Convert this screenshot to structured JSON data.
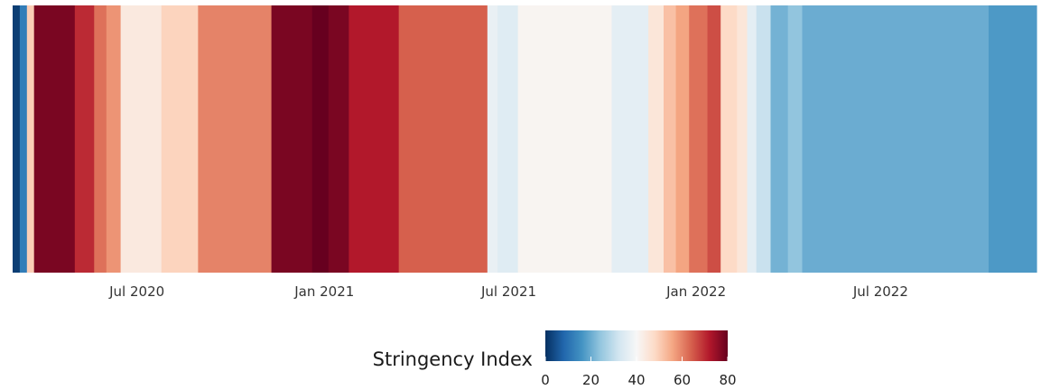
{
  "chart_data": {
    "type": "heatmap",
    "title": "",
    "xlabel": "",
    "ylabel": "",
    "x_range": [
      "2020-03-01",
      "2022-12-01"
    ],
    "x_ticks": [
      {
        "date": "2020-07-01",
        "label": "Jul 2020"
      },
      {
        "date": "2021-01-01",
        "label": "Jan 2021"
      },
      {
        "date": "2021-07-01",
        "label": "Jul 2021"
      },
      {
        "date": "2022-01-01",
        "label": "Jan 2022"
      },
      {
        "date": "2022-07-01",
        "label": "Jul 2022"
      }
    ],
    "grid": false,
    "colorbar": {
      "label": "Stringency Index",
      "range": [
        0,
        80
      ],
      "ticks": [
        0,
        20,
        40,
        60,
        80
      ],
      "placement": "bottom-center",
      "colormap": [
        "#053061",
        "#2166ac",
        "#4393c3",
        "#92c5de",
        "#d1e5f0",
        "#f7f7f7",
        "#fddbc7",
        "#f4a582",
        "#d6604d",
        "#b2182b",
        "#67001f"
      ]
    },
    "segments": [
      {
        "start": "2020-03-01",
        "end": "2020-03-08",
        "value": 2
      },
      {
        "start": "2020-03-08",
        "end": "2020-03-15",
        "value": 12
      },
      {
        "start": "2020-03-15",
        "end": "2020-03-22",
        "value": 50
      },
      {
        "start": "2020-03-22",
        "end": "2020-05-01",
        "value": 78
      },
      {
        "start": "2020-05-01",
        "end": "2020-05-20",
        "value": 70
      },
      {
        "start": "2020-05-20",
        "end": "2020-06-01",
        "value": 62
      },
      {
        "start": "2020-06-01",
        "end": "2020-06-15",
        "value": 58
      },
      {
        "start": "2020-06-15",
        "end": "2020-07-25",
        "value": 44
      },
      {
        "start": "2020-07-25",
        "end": "2020-08-30",
        "value": 49
      },
      {
        "start": "2020-08-30",
        "end": "2020-11-10",
        "value": 60
      },
      {
        "start": "2020-11-10",
        "end": "2020-12-20",
        "value": 78
      },
      {
        "start": "2020-12-20",
        "end": "2021-01-05",
        "value": 82
      },
      {
        "start": "2021-01-05",
        "end": "2021-01-25",
        "value": 78
      },
      {
        "start": "2021-01-25",
        "end": "2021-03-15",
        "value": 72
      },
      {
        "start": "2021-03-15",
        "end": "2021-06-10",
        "value": 64
      },
      {
        "start": "2021-06-10",
        "end": "2021-06-20",
        "value": 37
      },
      {
        "start": "2021-06-20",
        "end": "2021-07-10",
        "value": 35
      },
      {
        "start": "2021-07-10",
        "end": "2021-10-10",
        "value": 41
      },
      {
        "start": "2021-10-10",
        "end": "2021-11-15",
        "value": 36
      },
      {
        "start": "2021-11-15",
        "end": "2021-11-30",
        "value": 45
      },
      {
        "start": "2021-11-30",
        "end": "2021-12-12",
        "value": 52
      },
      {
        "start": "2021-12-12",
        "end": "2021-12-25",
        "value": 56
      },
      {
        "start": "2021-12-25",
        "end": "2022-01-12",
        "value": 62
      },
      {
        "start": "2022-01-12",
        "end": "2022-01-25",
        "value": 66
      },
      {
        "start": "2022-01-25",
        "end": "2022-02-10",
        "value": 48
      },
      {
        "start": "2022-02-10",
        "end": "2022-02-20",
        "value": 45
      },
      {
        "start": "2022-02-20",
        "end": "2022-03-01",
        "value": 36
      },
      {
        "start": "2022-03-01",
        "end": "2022-03-15",
        "value": 31
      },
      {
        "start": "2022-03-15",
        "end": "2022-04-01",
        "value": 21
      },
      {
        "start": "2022-04-01",
        "end": "2022-04-15",
        "value": 24
      },
      {
        "start": "2022-04-15",
        "end": "2022-10-15",
        "value": 20
      },
      {
        "start": "2022-10-15",
        "end": "2022-12-01",
        "value": 17
      }
    ]
  }
}
